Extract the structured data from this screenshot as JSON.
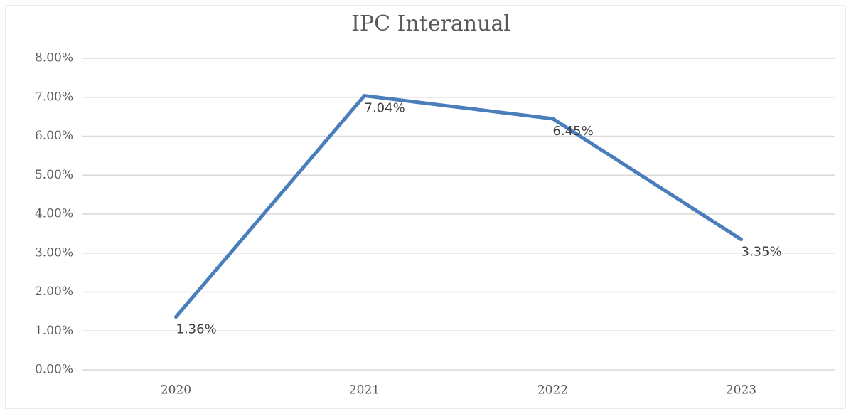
{
  "chart_data": {
    "type": "line",
    "title": "IPC Interanual",
    "categories": [
      "2020",
      "2021",
      "2022",
      "2023"
    ],
    "series": [
      {
        "name": "IPC Interanual",
        "color": "#4a7ebb",
        "values": [
          1.36,
          7.04,
          6.45,
          3.35
        ],
        "value_labels": [
          "1.36%",
          "7.04%",
          "6.45%",
          "3.35%"
        ]
      }
    ],
    "ylim": [
      0,
      8
    ],
    "yticks": [
      {
        "value": 0,
        "label": "0.00%"
      },
      {
        "value": 1,
        "label": "1.00%"
      },
      {
        "value": 2,
        "label": "2.00%"
      },
      {
        "value": 3,
        "label": "3.00%"
      },
      {
        "value": 4,
        "label": "4.00%"
      },
      {
        "value": 5,
        "label": "5.00%"
      },
      {
        "value": 6,
        "label": "6.00%"
      },
      {
        "value": 7,
        "label": "7.00%"
      },
      {
        "value": 8,
        "label": "8.00%"
      }
    ],
    "grid": true
  }
}
